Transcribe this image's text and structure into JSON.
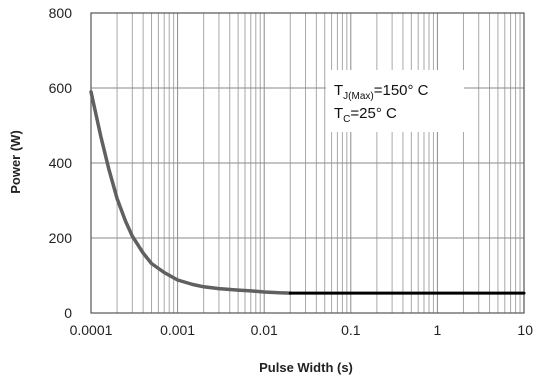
{
  "chart_data": {
    "type": "line",
    "x_scale": "log",
    "xlabel": "Pulse Width (s)",
    "ylabel": "Power (W)",
    "xlim": [
      0.0001,
      10
    ],
    "ylim": [
      0,
      800
    ],
    "grid": true,
    "x_ticks": [
      {
        "value": 0.0001,
        "label": "0.0001"
      },
      {
        "value": 0.001,
        "label": "0.001"
      },
      {
        "value": 0.01,
        "label": "0.01"
      },
      {
        "value": 0.1,
        "label": "0.1"
      },
      {
        "value": 1,
        "label": "1"
      },
      {
        "value": 10,
        "label": "10"
      }
    ],
    "y_ticks": [
      {
        "value": 0,
        "label": "0"
      },
      {
        "value": 200,
        "label": "200"
      },
      {
        "value": 400,
        "label": "400"
      },
      {
        "value": 600,
        "label": "600"
      },
      {
        "value": 800,
        "label": "800"
      }
    ],
    "series": [
      {
        "color": "#606060",
        "x": [
          0.0001,
          0.00013,
          0.00016,
          0.0002,
          0.00025,
          0.0003,
          0.0004,
          0.0005,
          0.0007,
          0.001,
          0.0015,
          0.002,
          0.003,
          0.005,
          0.007,
          0.01,
          0.015,
          0.02
        ],
        "y": [
          590,
          470,
          385,
          305,
          245,
          205,
          160,
          132,
          108,
          88,
          76,
          70,
          65,
          61,
          59,
          56,
          54,
          53
        ]
      },
      {
        "color": "#000000",
        "x": [
          0.02,
          0.05,
          0.1,
          1,
          10
        ],
        "y": [
          53,
          53,
          53,
          53,
          53
        ]
      }
    ],
    "annotations": {
      "tj_main": "T",
      "tj_sub": "J(Max)",
      "tj_rest": "=150° C",
      "tc_main": "T",
      "tc_sub": "C",
      "tc_rest": "=25° C"
    }
  }
}
